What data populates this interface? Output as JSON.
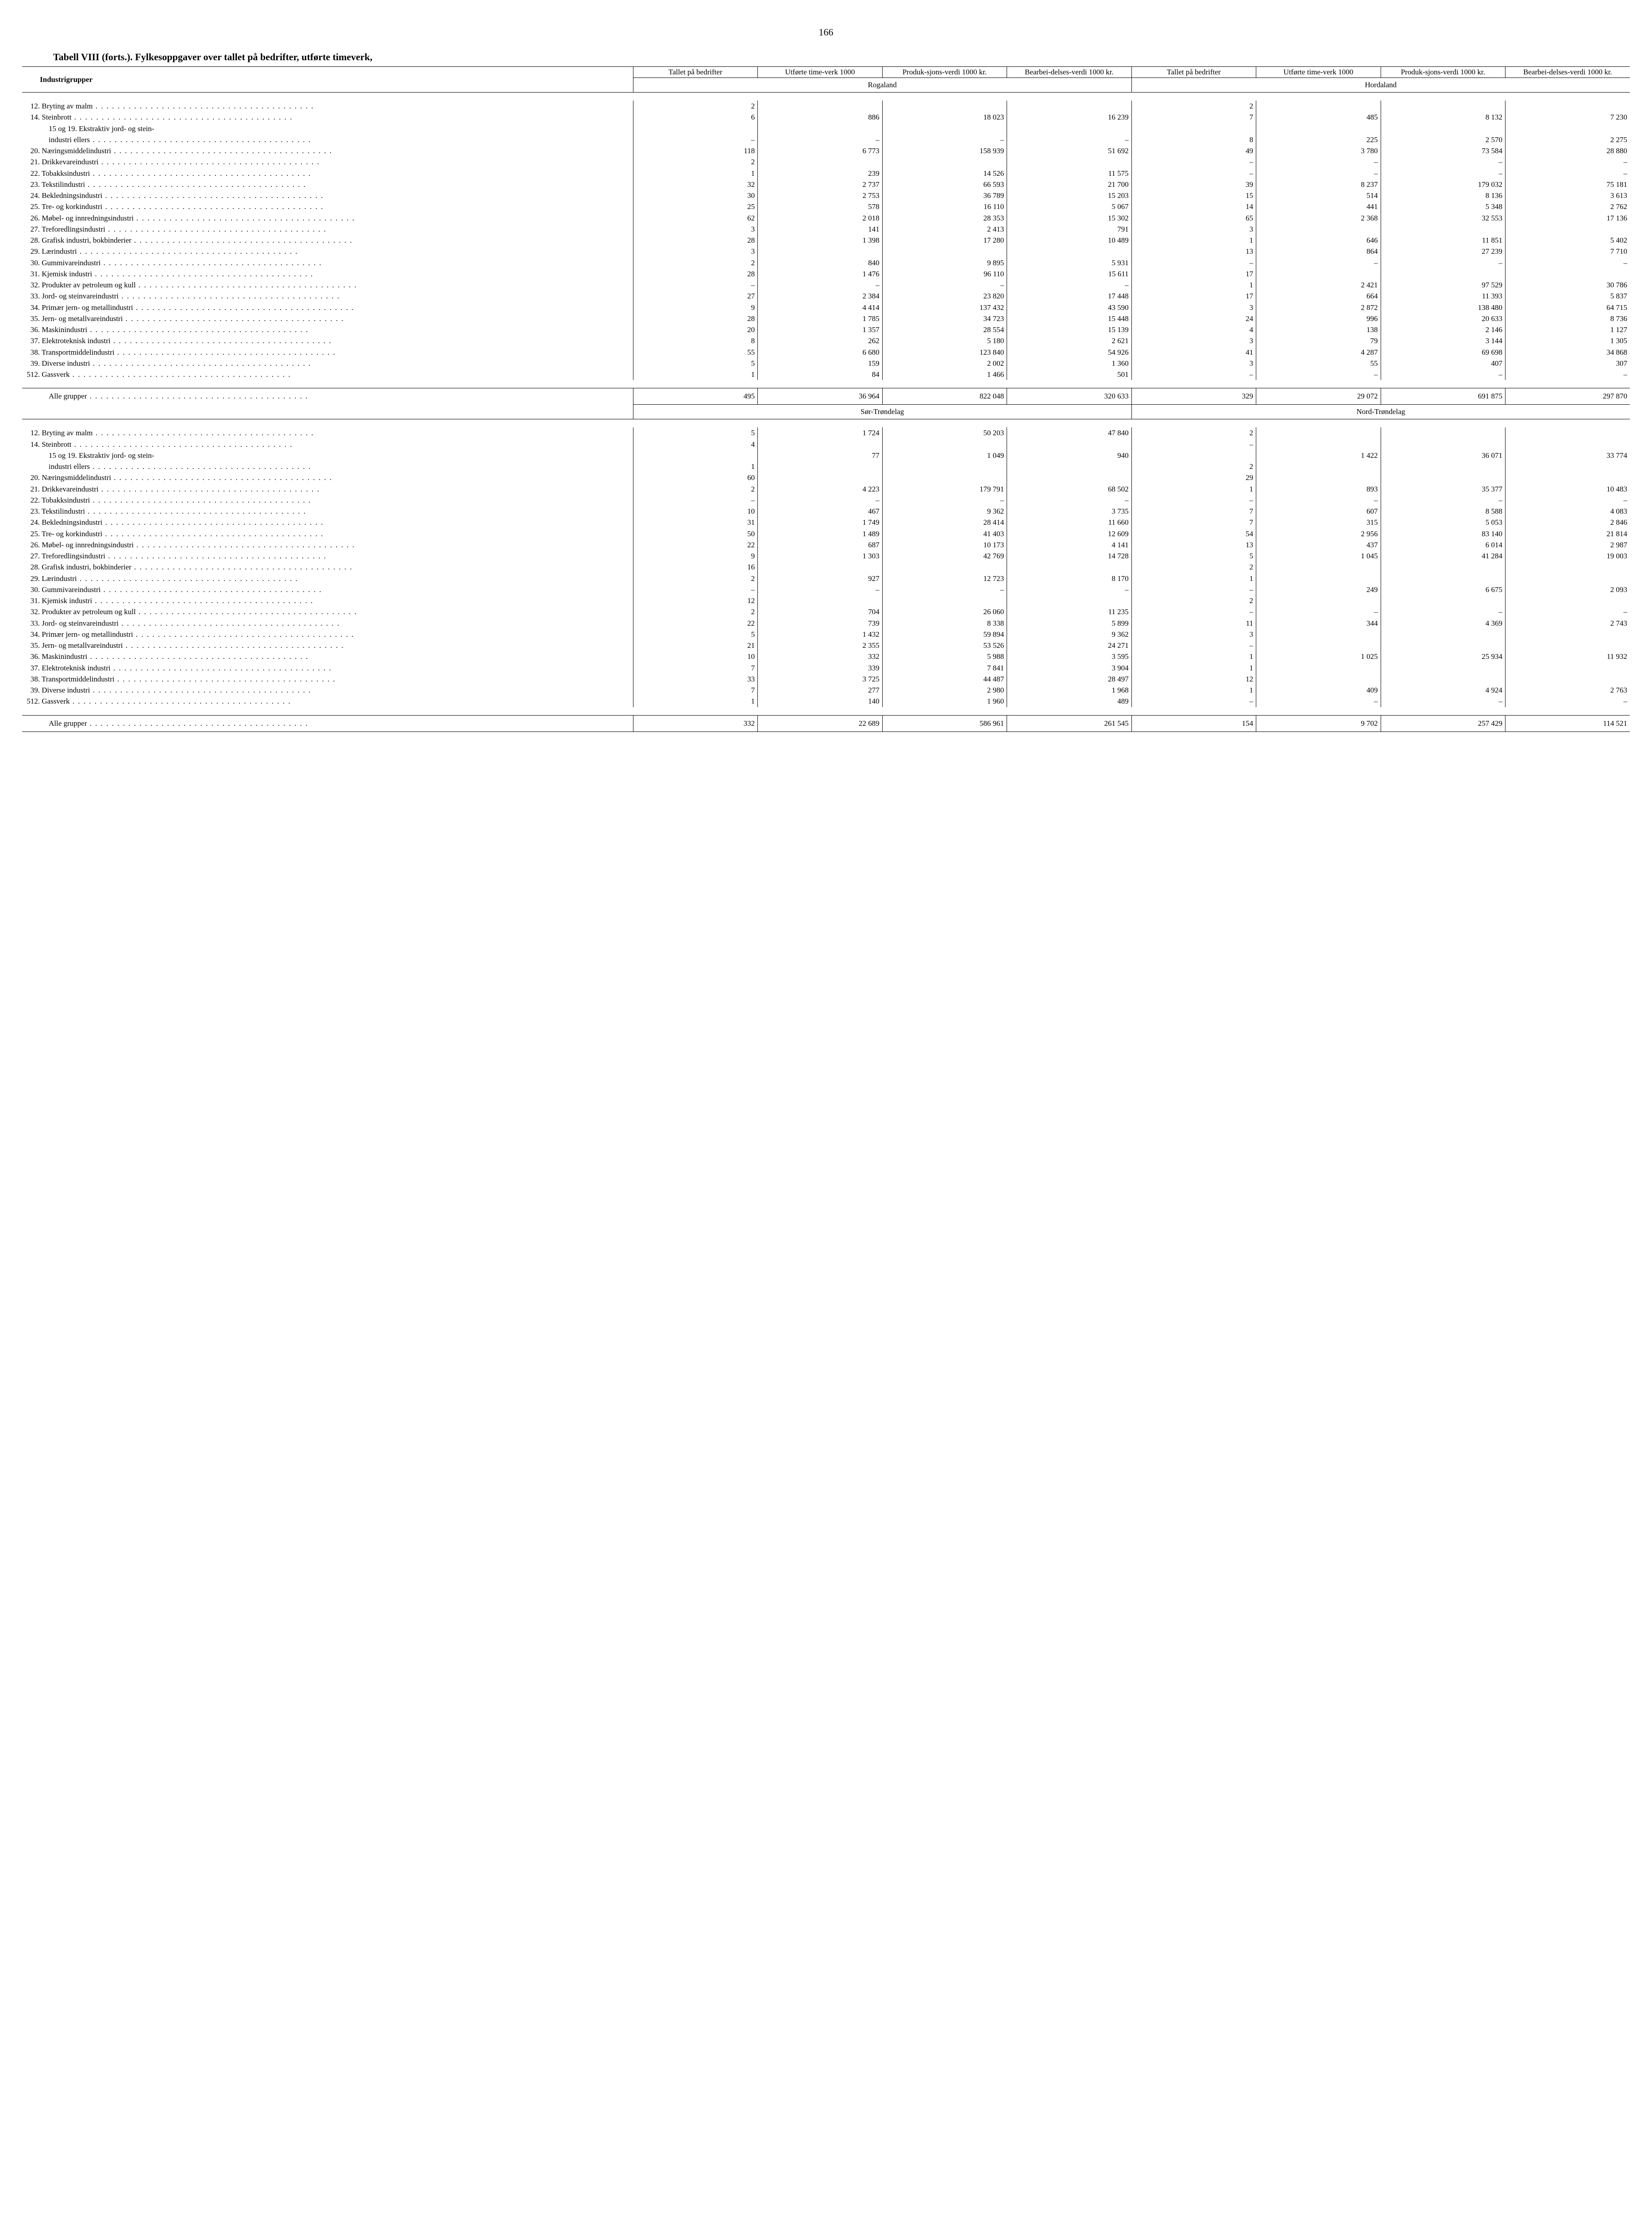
{
  "page_number": "166",
  "title": "Tabell VIII (forts.). Fylkesoppgaver over tallet på bedrifter, utførte timeverk,",
  "header_label": "Industrigrupper",
  "col_headers": {
    "c1": "Tallet på bedrifter",
    "c2": "Utførte time-verk 1000",
    "c3": "Produk-sjons-verdi 1000 kr.",
    "c4": "Bearbei-delses-verdi 1000 kr."
  },
  "regions": {
    "r1": "Rogaland",
    "r2": "Hordaland",
    "r3": "Sør-Trøndelag",
    "r4": "Nord-Trøndelag"
  },
  "row_labels": {
    "12": "Bryting av malm",
    "14": "Steinbrott",
    "15_19": "15 og 19. Ekstraktiv jord- og stein-",
    "15_19b": "industri ellers",
    "20": "Næringsmiddelindustri",
    "21": "Drikkevareindustri",
    "22": "Tobakksindustri",
    "23": "Tekstilindustri",
    "24": "Bekledningsindustri",
    "25": "Tre- og korkindustri",
    "26": "Møbel- og innredningsindustri",
    "27": "Treforedlingsindustri",
    "28": "Grafisk industri, bokbinderier",
    "29": "Lærindustri",
    "30": "Gummivareindustri",
    "31": "Kjemisk industri",
    "32": "Produkter av petroleum og kull",
    "33": "Jord- og steinvareindustri",
    "34": "Primær jern- og metallindustri",
    "35": "Jern- og metallvareindustri",
    "36": "Maskinindustri",
    "37": "Elektroteknisk industri",
    "38": "Transportmiddelindustri",
    "39": "Diverse industri",
    "512": "Gassverk",
    "total": "Alle grupper"
  },
  "block1": {
    "rows": [
      {
        "n": "12.",
        "lbl": "12",
        "a1": "2",
        "a2": "",
        "a3": "",
        "a4": "",
        "b1": "2",
        "b2": "",
        "b3": "",
        "b4": ""
      },
      {
        "n": "14.",
        "lbl": "14",
        "a1": "6",
        "a2": "886",
        "a3": "18 023",
        "a4": "16 239",
        "b1": "7",
        "b2": "485",
        "b3": "8 132",
        "b4": "7 230"
      },
      {
        "n": "",
        "lbl": "15_19",
        "a1": "",
        "a2": "",
        "a3": "",
        "a4": "",
        "b1": "",
        "b2": "",
        "b3": "",
        "b4": ""
      },
      {
        "n": "",
        "lbl": "15_19b",
        "indent": true,
        "a1": "–",
        "a2": "–",
        "a3": "–",
        "a4": "–",
        "b1": "8",
        "b2": "225",
        "b3": "2 570",
        "b4": "2 275"
      },
      {
        "n": "20.",
        "lbl": "20",
        "a1": "118",
        "a2": "6 773",
        "a3": "158 939",
        "a4": "51 692",
        "b1": "49",
        "b2": "3 780",
        "b3": "73 584",
        "b4": "28 880"
      },
      {
        "n": "21.",
        "lbl": "21",
        "a1": "2",
        "a2": "",
        "a3": "",
        "a4": "",
        "b1": "–",
        "b2": "–",
        "b3": "–",
        "b4": "–"
      },
      {
        "n": "22.",
        "lbl": "22",
        "a1": "1",
        "a2": "239",
        "a3": "14 526",
        "a4": "11 575",
        "b1": "–",
        "b2": "–",
        "b3": "–",
        "b4": "–"
      },
      {
        "n": "23.",
        "lbl": "23",
        "a1": "32",
        "a2": "2 737",
        "a3": "66 593",
        "a4": "21 700",
        "b1": "39",
        "b2": "8 237",
        "b3": "179 032",
        "b4": "75 181"
      },
      {
        "n": "24.",
        "lbl": "24",
        "a1": "30",
        "a2": "2 753",
        "a3": "36 789",
        "a4": "15 203",
        "b1": "15",
        "b2": "514",
        "b3": "8 136",
        "b4": "3 613"
      },
      {
        "n": "25.",
        "lbl": "25",
        "a1": "25",
        "a2": "578",
        "a3": "16 110",
        "a4": "5 067",
        "b1": "14",
        "b2": "441",
        "b3": "5 348",
        "b4": "2 762"
      },
      {
        "n": "26.",
        "lbl": "26",
        "a1": "62",
        "a2": "2 018",
        "a3": "28 353",
        "a4": "15 302",
        "b1": "65",
        "b2": "2 368",
        "b3": "32 553",
        "b4": "17 136"
      },
      {
        "n": "27.",
        "lbl": "27",
        "a1": "3",
        "a2": "141",
        "a3": "2 413",
        "a4": "791",
        "b1": "3",
        "b2": "",
        "b3": "",
        "b4": ""
      },
      {
        "n": "28.",
        "lbl": "28",
        "a1": "28",
        "a2": "1 398",
        "a3": "17 280",
        "a4": "10 489",
        "b1": "1",
        "b2": "646",
        "b3": "11 851",
        "b4": "5 402"
      },
      {
        "n": "29.",
        "lbl": "29",
        "a1": "3",
        "a2": "",
        "a3": "",
        "a4": "",
        "b1": "13",
        "b2": "864",
        "b3": "27 239",
        "b4": "7 710"
      },
      {
        "n": "30.",
        "lbl": "30",
        "a1": "2",
        "a2": "840",
        "a3": "9 895",
        "a4": "5 931",
        "b1": "–",
        "b2": "–",
        "b3": "–",
        "b4": "–"
      },
      {
        "n": "31.",
        "lbl": "31",
        "a1": "28",
        "a2": "1 476",
        "a3": "96 110",
        "a4": "15 611",
        "b1": "17",
        "b2": "",
        "b3": "",
        "b4": ""
      },
      {
        "n": "32.",
        "lbl": "32",
        "a1": "–",
        "a2": "–",
        "a3": "–",
        "a4": "–",
        "b1": "1",
        "b2": "2 421",
        "b3": "97 529",
        "b4": "30 786"
      },
      {
        "n": "33.",
        "lbl": "33",
        "a1": "27",
        "a2": "2 384",
        "a3": "23 820",
        "a4": "17 448",
        "b1": "17",
        "b2": "664",
        "b3": "11 393",
        "b4": "5 837"
      },
      {
        "n": "34.",
        "lbl": "34",
        "a1": "9",
        "a2": "4 414",
        "a3": "137 432",
        "a4": "43 590",
        "b1": "3",
        "b2": "2 872",
        "b3": "138 480",
        "b4": "64 715"
      },
      {
        "n": "35.",
        "lbl": "35",
        "a1": "28",
        "a2": "1 785",
        "a3": "34 723",
        "a4": "15 448",
        "b1": "24",
        "b2": "996",
        "b3": "20 633",
        "b4": "8 736"
      },
      {
        "n": "36.",
        "lbl": "36",
        "a1": "20",
        "a2": "1 357",
        "a3": "28 554",
        "a4": "15 139",
        "b1": "4",
        "b2": "138",
        "b3": "2 146",
        "b4": "1 127"
      },
      {
        "n": "37.",
        "lbl": "37",
        "a1": "8",
        "a2": "262",
        "a3": "5 180",
        "a4": "2 621",
        "b1": "3",
        "b2": "79",
        "b3": "3 144",
        "b4": "1 305"
      },
      {
        "n": "38.",
        "lbl": "38",
        "a1": "55",
        "a2": "6 680",
        "a3": "123 840",
        "a4": "54 926",
        "b1": "41",
        "b2": "4 287",
        "b3": "69 698",
        "b4": "34 868"
      },
      {
        "n": "39.",
        "lbl": "39",
        "a1": "5",
        "a2": "159",
        "a3": "2 002",
        "a4": "1 360",
        "b1": "3",
        "b2": "55",
        "b3": "407",
        "b4": "307"
      },
      {
        "n": "512.",
        "lbl": "512",
        "a1": "1",
        "a2": "84",
        "a3": "1 466",
        "a4": "501",
        "b1": "–",
        "b2": "–",
        "b3": "–",
        "b4": "–"
      }
    ],
    "total": {
      "a1": "495",
      "a2": "36 964",
      "a3": "822 048",
      "a4": "320 633",
      "b1": "329",
      "b2": "29 072",
      "b3": "691 875",
      "b4": "297 870"
    }
  },
  "block2": {
    "rows": [
      {
        "n": "12.",
        "lbl": "12",
        "a1": "5",
        "a2": "1 724",
        "a3": "50 203",
        "a4": "47 840",
        "b1": "2",
        "b2": "",
        "b3": "",
        "b4": ""
      },
      {
        "n": "14.",
        "lbl": "14",
        "a1": "4",
        "a2": "",
        "a3": "",
        "a4": "",
        "b1": "–",
        "b2": "",
        "b3": "",
        "b4": ""
      },
      {
        "n": "",
        "lbl": "15_19",
        "a1": "",
        "a2": "77",
        "a3": "1 049",
        "a4": "940",
        "b1": "",
        "b2": "1 422",
        "b3": "36 071",
        "b4": "33 774"
      },
      {
        "n": "",
        "lbl": "15_19b",
        "indent": true,
        "a1": "1",
        "a2": "",
        "a3": "",
        "a4": "",
        "b1": "2",
        "b2": "",
        "b3": "",
        "b4": ""
      },
      {
        "n": "20.",
        "lbl": "20",
        "a1": "60",
        "a2": "",
        "a3": "",
        "a4": "",
        "b1": "29",
        "b2": "",
        "b3": "",
        "b4": ""
      },
      {
        "n": "21.",
        "lbl": "21",
        "a1": "2",
        "a2": "4 223",
        "a3": "179 791",
        "a4": "68 502",
        "b1": "1",
        "b2": "893",
        "b3": "35 377",
        "b4": "10 483"
      },
      {
        "n": "22.",
        "lbl": "22",
        "a1": "–",
        "a2": "–",
        "a3": "–",
        "a4": "–",
        "b1": "–",
        "b2": "–",
        "b3": "–",
        "b4": "–"
      },
      {
        "n": "23.",
        "lbl": "23",
        "a1": "10",
        "a2": "467",
        "a3": "9 362",
        "a4": "3 735",
        "b1": "7",
        "b2": "607",
        "b3": "8 588",
        "b4": "4 083"
      },
      {
        "n": "24.",
        "lbl": "24",
        "a1": "31",
        "a2": "1 749",
        "a3": "28 414",
        "a4": "11 660",
        "b1": "7",
        "b2": "315",
        "b3": "5 053",
        "b4": "2 846"
      },
      {
        "n": "25.",
        "lbl": "25",
        "a1": "50",
        "a2": "1 489",
        "a3": "41 403",
        "a4": "12 609",
        "b1": "54",
        "b2": "2 956",
        "b3": "83 140",
        "b4": "21 814"
      },
      {
        "n": "26.",
        "lbl": "26",
        "a1": "22",
        "a2": "687",
        "a3": "10 173",
        "a4": "4 141",
        "b1": "13",
        "b2": "437",
        "b3": "6 014",
        "b4": "2 987"
      },
      {
        "n": "27.",
        "lbl": "27",
        "a1": "9",
        "a2": "1 303",
        "a3": "42 769",
        "a4": "14 728",
        "b1": "5",
        "b2": "1 045",
        "b3": "41 284",
        "b4": "19 003"
      },
      {
        "n": "28.",
        "lbl": "28",
        "a1": "16",
        "a2": "",
        "a3": "",
        "a4": "",
        "b1": "2",
        "b2": "",
        "b3": "",
        "b4": ""
      },
      {
        "n": "29.",
        "lbl": "29",
        "a1": "2",
        "a2": "927",
        "a3": "12 723",
        "a4": "8 170",
        "b1": "1",
        "b2": "",
        "b3": "",
        "b4": ""
      },
      {
        "n": "30.",
        "lbl": "30",
        "a1": "–",
        "a2": "–",
        "a3": "–",
        "a4": "–",
        "b1": "–",
        "b2": "249",
        "b3": "6 675",
        "b4": "2 093"
      },
      {
        "n": "31.",
        "lbl": "31",
        "a1": "12",
        "a2": "",
        "a3": "",
        "a4": "",
        "b1": "2",
        "b2": "",
        "b3": "",
        "b4": ""
      },
      {
        "n": "32.",
        "lbl": "32",
        "a1": "2",
        "a2": "704",
        "a3": "26 060",
        "a4": "11 235",
        "b1": "–",
        "b2": "–",
        "b3": "–",
        "b4": "–"
      },
      {
        "n": "33.",
        "lbl": "33",
        "a1": "22",
        "a2": "739",
        "a3": "8 338",
        "a4": "5 899",
        "b1": "11",
        "b2": "344",
        "b3": "4 369",
        "b4": "2 743"
      },
      {
        "n": "34.",
        "lbl": "34",
        "a1": "5",
        "a2": "1 432",
        "a3": "59 894",
        "a4": "9 362",
        "b1": "3",
        "b2": "",
        "b3": "",
        "b4": ""
      },
      {
        "n": "35.",
        "lbl": "35",
        "a1": "21",
        "a2": "2 355",
        "a3": "53 526",
        "a4": "24 271",
        "b1": "–",
        "b2": "",
        "b3": "",
        "b4": ""
      },
      {
        "n": "36.",
        "lbl": "36",
        "a1": "10",
        "a2": "332",
        "a3": "5 988",
        "a4": "3 595",
        "b1": "1",
        "b2": "1 025",
        "b3": "25 934",
        "b4": "11 932"
      },
      {
        "n": "37.",
        "lbl": "37",
        "a1": "7",
        "a2": "339",
        "a3": "7 841",
        "a4": "3 904",
        "b1": "1",
        "b2": "",
        "b3": "",
        "b4": ""
      },
      {
        "n": "38.",
        "lbl": "38",
        "a1": "33",
        "a2": "3 725",
        "a3": "44 487",
        "a4": "28 497",
        "b1": "12",
        "b2": "",
        "b3": "",
        "b4": ""
      },
      {
        "n": "39.",
        "lbl": "39",
        "a1": "7",
        "a2": "277",
        "a3": "2 980",
        "a4": "1 968",
        "b1": "1",
        "b2": "409",
        "b3": "4 924",
        "b4": "2 763"
      },
      {
        "n": "512.",
        "lbl": "512",
        "a1": "1",
        "a2": "140",
        "a3": "1 960",
        "a4": "489",
        "b1": "–",
        "b2": "–",
        "b3": "–",
        "b4": "–"
      }
    ],
    "total": {
      "a1": "332",
      "a2": "22 689",
      "a3": "586 961",
      "a4": "261 545",
      "b1": "154",
      "b2": "9 702",
      "b3": "257 429",
      "b4": "114 521"
    }
  }
}
